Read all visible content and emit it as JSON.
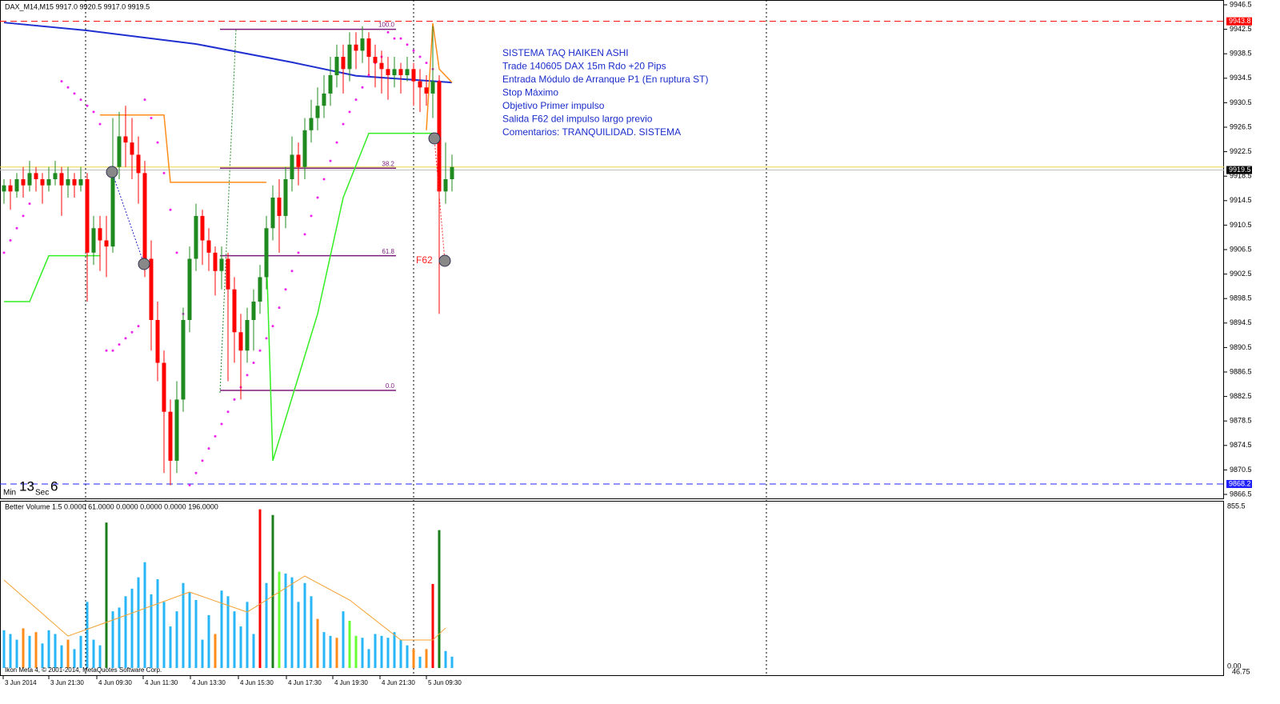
{
  "header": {
    "title": "DAX_M14,M15  9917.0 9920.5 9917.0 9919.5"
  },
  "price_axis": {
    "ticks": [
      "9946.5",
      "9942.5",
      "9938.5",
      "9934.5",
      "9930.5",
      "9926.5",
      "9922.5",
      "9918.5",
      "9914.5",
      "9910.5",
      "9906.5",
      "9902.5",
      "9898.5",
      "9894.5",
      "9890.5",
      "9886.5",
      "9882.5",
      "9878.5",
      "9874.5",
      "9870.5",
      "9866.5"
    ],
    "top": 9946.5,
    "bottom": 9866.5,
    "levels": [
      {
        "label": "9943.8",
        "price": 9943.8,
        "color": "#ff0000",
        "style": "dash"
      },
      {
        "label": "9919.5",
        "price": 9919.5,
        "color": "#000000",
        "style": "solid"
      },
      {
        "label": "9868.2",
        "price": 9868.2,
        "color": "#2020ff",
        "style": "dash"
      }
    ],
    "extra_line": {
      "price": 9920,
      "color": "#e8d84a"
    }
  },
  "time_axis": {
    "labels": [
      "3 Jun 2014",
      "3 Jun 21:30",
      "4 Jun 09:30",
      "4 Jun 11:30",
      "4 Jun 13:30",
      "4 Jun 15:30",
      "4 Jun 17:30",
      "4 Jun 19:30",
      "4 Jun 21:30",
      "5 Jun 09:30"
    ]
  },
  "candles": [
    [
      9916,
      9918,
      9914,
      9917
    ],
    [
      9917,
      9918,
      9913,
      9916
    ],
    [
      9916,
      9919,
      9915,
      9918
    ],
    [
      9918,
      9920,
      9915,
      9917
    ],
    [
      9917,
      9921,
      9916,
      9919
    ],
    [
      9919,
      9920,
      9916,
      9918
    ],
    [
      9918,
      9919,
      9914,
      9917
    ],
    [
      9917,
      9920,
      9916,
      9918
    ],
    [
      9918,
      9921,
      9917,
      9919
    ],
    [
      9919,
      9920,
      9912,
      9917
    ],
    [
      9917,
      9920,
      9915,
      9918
    ],
    [
      9918,
      9919,
      9915,
      9917
    ],
    [
      9917,
      9920,
      9916,
      9918
    ],
    [
      9918,
      9919,
      9898,
      9906
    ],
    [
      9906,
      9912,
      9904,
      9910
    ],
    [
      9910,
      9912,
      9903,
      9908
    ],
    [
      9908,
      9912,
      9902,
      9907
    ],
    [
      9907,
      9928,
      9906,
      9920
    ],
    [
      9920,
      9929,
      9918,
      9925
    ],
    [
      9925,
      9930,
      9920,
      9924
    ],
    [
      9924,
      9928,
      9918,
      9922
    ],
    [
      9922,
      9925,
      9914,
      9919
    ],
    [
      9919,
      9921,
      9902,
      9905
    ],
    [
      9905,
      9908,
      9890,
      9895
    ],
    [
      9895,
      9898,
      9885,
      9888
    ],
    [
      9888,
      9890,
      9870,
      9880
    ],
    [
      9880,
      9882,
      9868,
      9872
    ],
    [
      9872,
      9885,
      9870,
      9882
    ],
    [
      9882,
      9897,
      9880,
      9895
    ],
    [
      9895,
      9907,
      9893,
      9905
    ],
    [
      9905,
      9914,
      9903,
      9912
    ],
    [
      9912,
      9913,
      9904,
      9908
    ],
    [
      9908,
      9910,
      9903,
      9906
    ],
    [
      9906,
      9907,
      9899,
      9903
    ],
    [
      9903,
      9907,
      9900,
      9905
    ],
    [
      9905,
      9906,
      9885,
      9900
    ],
    [
      9900,
      9902,
      9888,
      9893
    ],
    [
      9893,
      9896,
      9882,
      9890
    ],
    [
      9890,
      9897,
      9888,
      9895
    ],
    [
      9895,
      9900,
      9890,
      9898
    ],
    [
      9898,
      9904,
      9896,
      9902
    ],
    [
      9902,
      9912,
      9900,
      9910
    ],
    [
      9910,
      9917,
      9908,
      9915
    ],
    [
      9915,
      9918,
      9906,
      9912
    ],
    [
      9912,
      9920,
      9910,
      9918
    ],
    [
      9918,
      9925,
      9916,
      9922
    ],
    [
      9922,
      9924,
      9917,
      9920
    ],
    [
      9920,
      9928,
      9918,
      9926
    ],
    [
      9926,
      9931,
      9924,
      9928
    ],
    [
      9928,
      9933,
      9926,
      9930
    ],
    [
      9930,
      9935,
      9928,
      9932
    ],
    [
      9932,
      9938,
      9930,
      9935
    ],
    [
      9935,
      9940,
      9933,
      9938
    ],
    [
      9938,
      9940,
      9932,
      9936
    ],
    [
      9936,
      9942,
      9934,
      9940
    ],
    [
      9940,
      9942,
      9936,
      9939
    ],
    [
      9939,
      9943,
      9937,
      9941
    ],
    [
      9941,
      9942,
      9935,
      9938
    ],
    [
      9938,
      9940,
      9933,
      9937
    ],
    [
      9937,
      9939,
      9932,
      9936
    ],
    [
      9936,
      9938,
      9931,
      9935
    ],
    [
      9935,
      9938,
      9933,
      9936
    ],
    [
      9936,
      9937,
      9932,
      9935
    ],
    [
      9935,
      9938,
      9934,
      9936
    ],
    [
      9936,
      9937,
      9930,
      9934
    ],
    [
      9934,
      9936,
      9929,
      9933
    ],
    [
      9933,
      9935,
      9930,
      9932
    ],
    [
      9932,
      9943,
      9928,
      9934
    ],
    [
      9934,
      9935,
      9896,
      9916
    ],
    [
      9916,
      9924,
      9914,
      9918
    ],
    [
      9918,
      9922,
      9916,
      9920
    ]
  ],
  "ma": {
    "color": "#1f2fd0",
    "index": [
      0,
      13,
      30,
      45,
      55,
      70
    ],
    "values": [
      9943.6,
      9942.3,
      9940.1,
      9937.1,
      9934.9,
      9933.8
    ]
  },
  "orange": {
    "color": "#ff8c1a",
    "index": [
      15,
      25,
      26,
      41,
      null,
      66,
      67,
      68,
      70
    ],
    "values": [
      9928.5,
      9928.5,
      9917.5,
      9917.5,
      null,
      9926,
      9943.5,
      9936,
      9933.8
    ]
  },
  "green": {
    "color": "#33ee22",
    "index": [
      0,
      4,
      7,
      15,
      null,
      41,
      42,
      49,
      53,
      57,
      67
    ],
    "values": [
      9898,
      9898,
      9905.5,
      9905.5,
      null,
      9906,
      9872,
      9896,
      9915,
      9925.5,
      9925.5
    ]
  },
  "sar": {
    "color": "#ee22ee",
    "values": [
      9906,
      9908,
      9910,
      9912,
      9914,
      null,
      null,
      null,
      null,
      9934,
      9933,
      9932,
      9931,
      9930,
      9929,
      9927,
      9890,
      9890,
      9891,
      9892,
      9893,
      9894,
      9931,
      9928,
      9924,
      9919,
      9913,
      9906,
      9896,
      9868,
      9870,
      9872,
      9874,
      9876,
      9878,
      9880,
      9882,
      9884,
      9886,
      9888,
      9890,
      9892,
      9894,
      9897,
      9900,
      9903,
      9906,
      9909,
      9912,
      9915,
      9918,
      9921,
      9924,
      9927,
      9929,
      9931,
      9933,
      9935,
      9937,
      9938,
      9942,
      9941,
      9941,
      9940,
      9939,
      9938,
      9937,
      9936,
      9934,
      null,
      null
    ]
  },
  "fib": [
    {
      "label": "100.0",
      "price": 9942.5
    },
    {
      "label": "38.2",
      "price": 9919.8
    },
    {
      "label": "61.8",
      "price": 9905.5
    },
    {
      "label": "0.0",
      "price": 9883.5
    }
  ],
  "annotation": {
    "lines": [
      "SISTEMA TAQ HAIKEN ASHI",
      "Trade 140605 DAX 15m Rdo +20 Pips",
      "Entrada Módulo de Arranque P1 (En ruptura ST)",
      "Stop Máximo",
      "Objetivo Primer impulso",
      "Salida  F62 del impulso largo previo",
      "Comentarios: TRANQUILIDAD. SISTEMA"
    ]
  },
  "marker_label": "F62",
  "timer": {
    "min_label": "Min",
    "min": "13",
    "sec_label": "Sec",
    "sec": "6"
  },
  "volume": {
    "title": "Better Volume 1.5 0.0000 61.0000 0.0000 0.0000 0.0000 196.0000",
    "top": 855.5,
    "top_label": "855.5",
    "bottom_labels": [
      "0.00",
      "46.75"
    ],
    "palette": {
      "b": "#29b6f6",
      "o": "#ff8c1a",
      "r": "#ff0000",
      "g": "#1a7f1a",
      "l": "#66ff33"
    },
    "values": [
      200,
      180,
      150,
      210,
      170,
      190,
      130,
      200,
      180,
      120,
      150,
      100,
      170,
      350,
      150,
      120,
      770,
      300,
      320,
      380,
      420,
      480,
      560,
      390,
      470,
      350,
      220,
      300,
      450,
      400,
      360,
      150,
      280,
      180,
      410,
      380,
      300,
      220,
      350,
      180,
      840,
      450,
      810,
      510,
      500,
      480,
      350,
      450,
      380,
      260,
      190,
      170,
      160,
      300,
      250,
      170,
      160,
      100,
      180,
      170,
      160,
      190,
      150,
      120,
      100,
      60,
      100,
      445,
      730,
      90,
      60
    ],
    "colors": [
      "b",
      "b",
      "b",
      "o",
      "b",
      "o",
      "b",
      "b",
      "b",
      "b",
      "o",
      "b",
      "b",
      "b",
      "b",
      "b",
      "g",
      "b",
      "b",
      "b",
      "b",
      "b",
      "b",
      "b",
      "b",
      "b",
      "b",
      "b",
      "b",
      "b",
      "b",
      "b",
      "b",
      "o",
      "b",
      "b",
      "b",
      "b",
      "b",
      "b",
      "r",
      "b",
      "g",
      "l",
      "b",
      "b",
      "b",
      "b",
      "b",
      "o",
      "b",
      "b",
      "o",
      "b",
      "l",
      "l",
      "b",
      "b",
      "b",
      "b",
      "b",
      "b",
      "b",
      "b",
      "o",
      "b",
      "o",
      "r",
      "g",
      "b",
      "b"
    ],
    "ma": {
      "color": "#f5a030",
      "index": [
        0,
        10,
        17,
        29,
        38,
        47,
        54,
        62,
        67,
        69
      ],
      "values": [
        466,
        169,
        254,
        402,
        296,
        487,
        360,
        148,
        148,
        212
      ]
    }
  },
  "footer": "Ikon Meta 4, © 2001-2014, MetaQuotes Software Corp."
}
